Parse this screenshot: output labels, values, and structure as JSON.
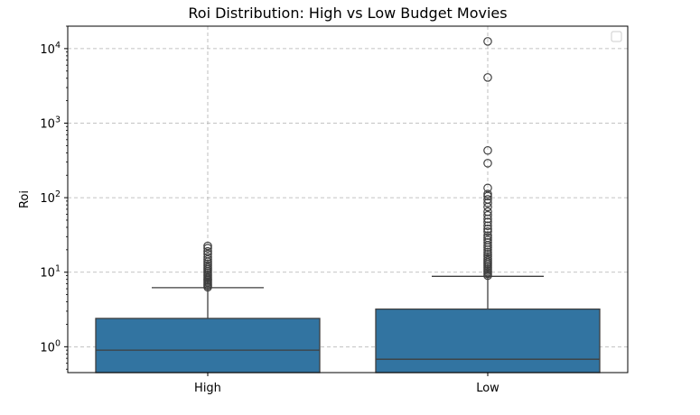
{
  "chart_data": {
    "type": "box",
    "title": "Roi Distribution: High vs Low Budget Movies",
    "xlabel": "",
    "ylabel": "Roi",
    "y_scale": "log",
    "ylim": [
      0.45,
      20000
    ],
    "categories": [
      "High",
      "Low"
    ],
    "y_ticks": [
      {
        "value": 1,
        "base": "10",
        "exp": "0"
      },
      {
        "value": 10,
        "base": "10",
        "exp": "1"
      },
      {
        "value": 100,
        "base": "10",
        "exp": "2"
      },
      {
        "value": 1000,
        "base": "10",
        "exp": "3"
      },
      {
        "value": 10000,
        "base": "10",
        "exp": "4"
      }
    ],
    "grid": true,
    "legend": {
      "position": "top-right",
      "entries": []
    },
    "box_color": "#3274a1",
    "boxes": [
      {
        "category": "High",
        "q1": 0.45,
        "median": 0.9,
        "q3": 2.4,
        "whisker_low": 0.45,
        "whisker_high": 6.2,
        "outliers": [
          6.3,
          6.6,
          6.9,
          7.2,
          7.5,
          7.8,
          8.1,
          8.5,
          8.9,
          9.3,
          9.8,
          10.3,
          10.9,
          11.5,
          12.2,
          13.0,
          13.8,
          14.8,
          16.0,
          17.5,
          19.0,
          21.0,
          22.5
        ]
      },
      {
        "category": "Low",
        "q1": 0.45,
        "median": 0.68,
        "q3": 3.2,
        "whisker_low": 0.45,
        "whisker_high": 8.8,
        "outliers": [
          9.0,
          9.5,
          10.0,
          10.5,
          11.0,
          11.6,
          12.2,
          12.9,
          13.6,
          14.4,
          15.3,
          16.3,
          17.4,
          18.6,
          20.0,
          21.5,
          23.0,
          25.0,
          27.0,
          29.0,
          31.0,
          35.0,
          38.0,
          42.0,
          47.0,
          52.0,
          58.0,
          65.0,
          75.0,
          85.0,
          95.0,
          105.0,
          112.0,
          135.0,
          290.0,
          430.0,
          4100.0,
          12500.0
        ]
      }
    ]
  }
}
